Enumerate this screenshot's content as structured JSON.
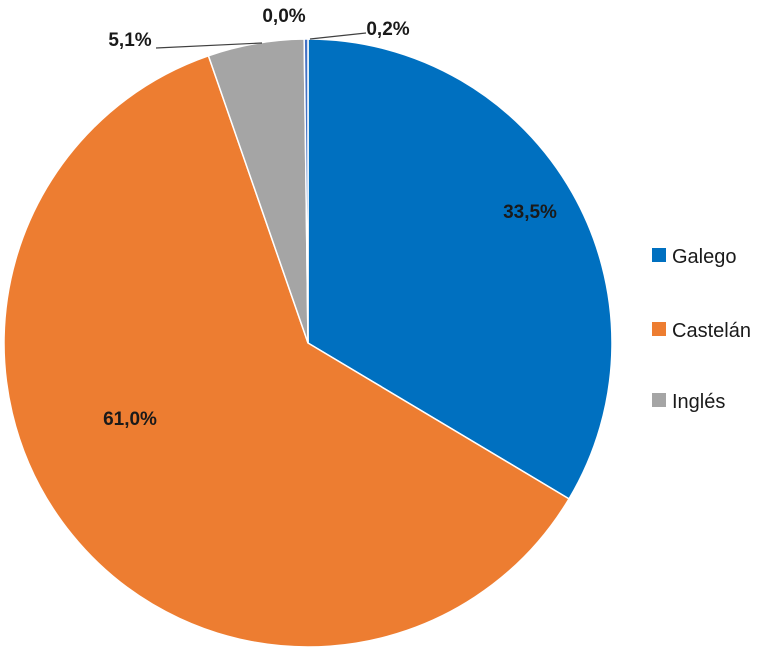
{
  "chart_data": {
    "type": "pie",
    "categories": [
      "Galego",
      "Castelán",
      "Inglés",
      "",
      ""
    ],
    "values": [
      33.5,
      61.0,
      5.1,
      0.0,
      0.2
    ],
    "data_labels": [
      "33,5%",
      "61,0%",
      "5,1%",
      "0,0%",
      "0,2%"
    ],
    "colors": [
      "#0070c0",
      "#ed7d31",
      "#a5a5a5",
      "#ffc000",
      "#4472c4"
    ],
    "legend": {
      "position": "right",
      "entries": [
        "Galego",
        "Castelán",
        "Inglés"
      ]
    },
    "title": ""
  }
}
